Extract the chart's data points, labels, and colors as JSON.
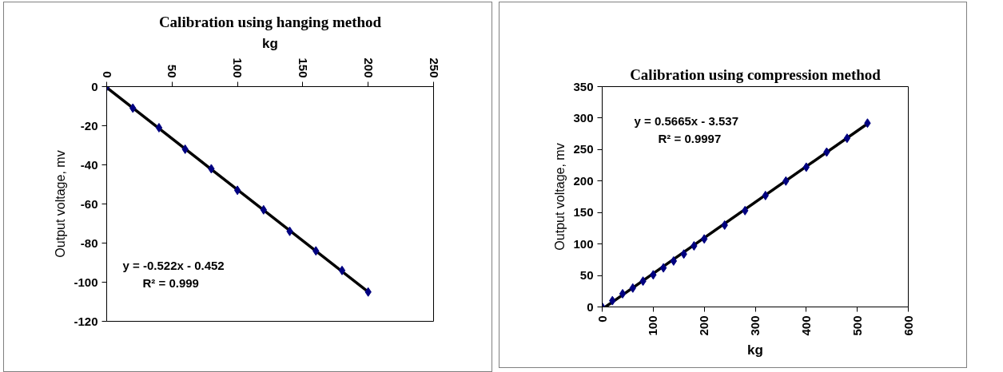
{
  "chart_data": [
    {
      "type": "scatter",
      "title": "Calibration using hanging method",
      "xlabel": "kg",
      "ylabel": "Output voltage, mv",
      "xlim": [
        0,
        250
      ],
      "xticks": [
        0,
        50,
        100,
        150,
        200,
        250
      ],
      "ylim": [
        -120,
        0
      ],
      "yticks": [
        -120,
        -100,
        -80,
        -60,
        -40,
        -20,
        0
      ],
      "series": [
        {
          "type": "line",
          "marker": "none",
          "color": "#000000",
          "x": [
            0,
            200
          ],
          "values": [
            -0.5,
            -104.9
          ]
        },
        {
          "marker": "diamond",
          "color": "#000080",
          "x": [
            0,
            20,
            40,
            60,
            80,
            100,
            120,
            140,
            160,
            180,
            200
          ],
          "values": [
            0,
            -11,
            -21,
            -32,
            -42,
            -53,
            -63,
            -74,
            -84,
            -94,
            -105
          ]
        }
      ],
      "annotations": [
        "y = -0.522x - 0.452",
        "R² = 0.999"
      ]
    },
    {
      "type": "scatter",
      "title": "Calibration using compression method",
      "xlabel": "kg",
      "ylabel": "Output voltage, mv",
      "xlim": [
        0,
        600
      ],
      "xticks": [
        0,
        100,
        200,
        300,
        400,
        500,
        600
      ],
      "ylim": [
        0,
        350
      ],
      "yticks": [
        0,
        50,
        100,
        150,
        200,
        250,
        300,
        350
      ],
      "series": [
        {
          "type": "line",
          "marker": "none",
          "color": "#000000",
          "x": [
            6.2,
            520
          ],
          "values": [
            0,
            291
          ]
        },
        {
          "marker": "diamond",
          "color": "#000080",
          "x": [
            0,
            20,
            40,
            60,
            80,
            100,
            120,
            140,
            160,
            180,
            200,
            240,
            280,
            320,
            360,
            400,
            440,
            480,
            520
          ],
          "values": [
            0,
            10,
            21,
            30,
            41,
            51,
            62,
            73,
            84,
            97,
            108,
            130,
            153,
            177,
            200,
            222,
            246,
            268,
            292
          ]
        }
      ],
      "annotations": [
        "y = 0.5665x - 3.537",
        "R² = 0.9997"
      ]
    }
  ]
}
